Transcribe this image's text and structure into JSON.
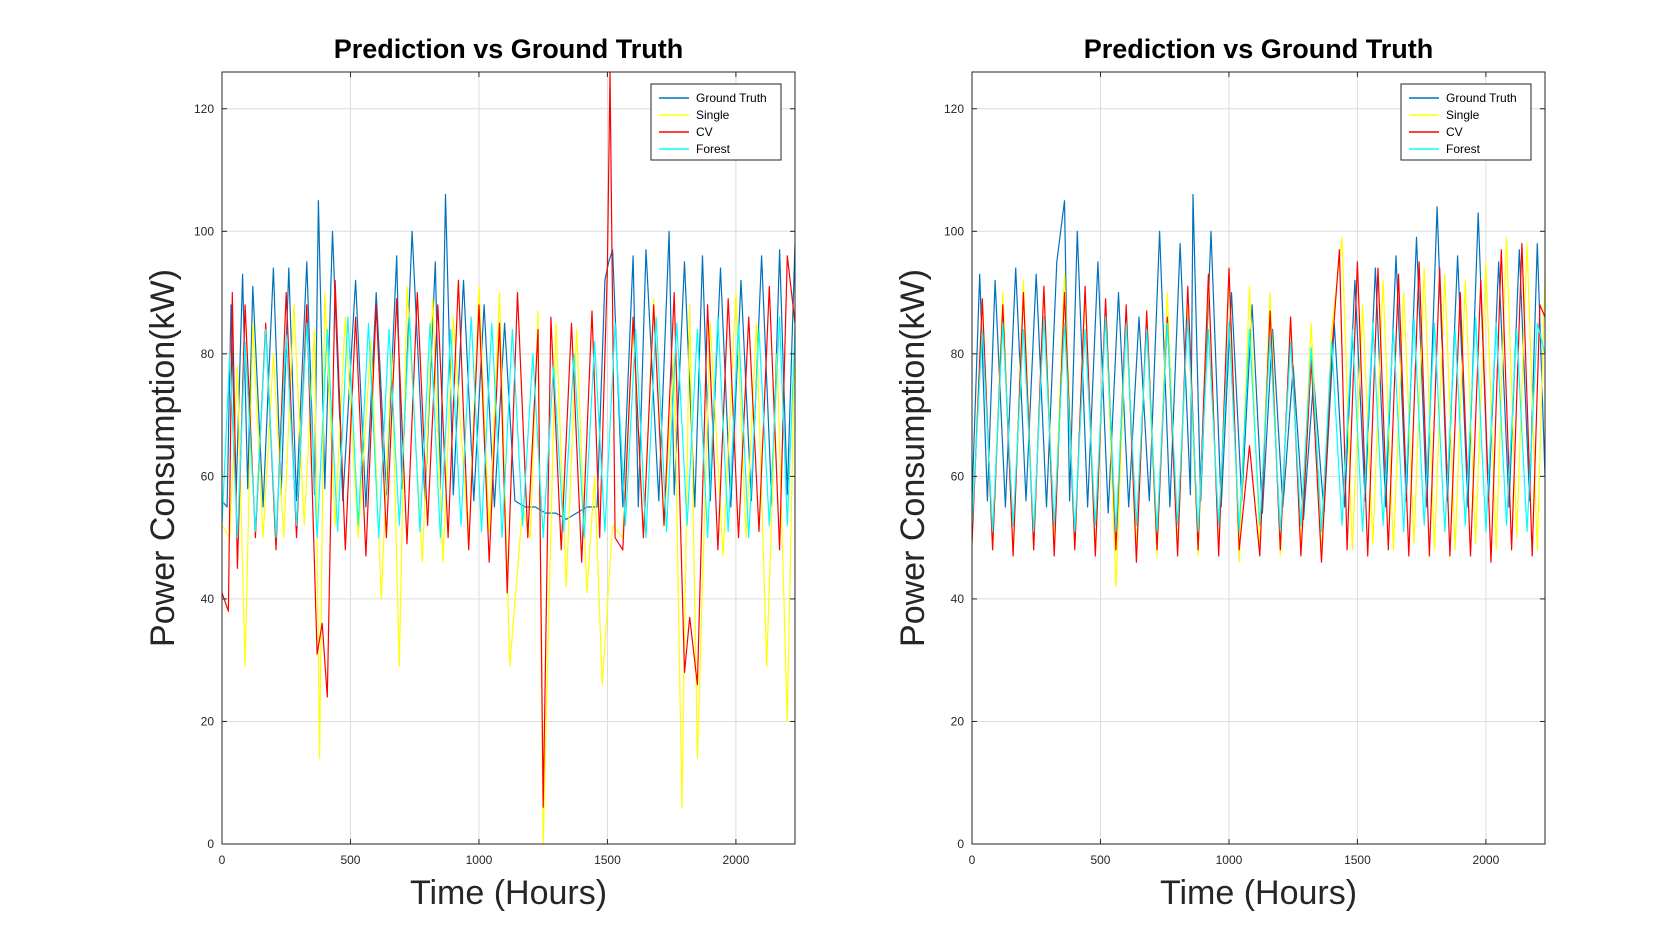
{
  "chart_data": [
    {
      "type": "line",
      "title": "Prediction vs Ground Truth",
      "xlabel": "Time (Hours)",
      "ylabel": "Power Consumption(kW)",
      "xlim": [
        0,
        2230
      ],
      "ylim": [
        0,
        126
      ],
      "xticks": [
        0,
        500,
        1000,
        1500,
        2000
      ],
      "yticks": [
        0,
        20,
        40,
        60,
        80,
        100,
        120
      ],
      "grid": true,
      "legend_position": "top-right",
      "series": [
        {
          "name": "Ground Truth",
          "color": "#0072BD",
          "x": [
            0,
            20,
            35,
            55,
            80,
            100,
            120,
            160,
            200,
            230,
            260,
            290,
            330,
            360,
            375,
            400,
            430,
            470,
            520,
            560,
            600,
            640,
            680,
            700,
            740,
            790,
            830,
            850,
            870,
            900,
            940,
            980,
            1020,
            1060,
            1100,
            1140,
            1180,
            1220,
            1260,
            1300,
            1340,
            1380,
            1420,
            1460,
            1490,
            1505,
            1520,
            1560,
            1600,
            1620,
            1650,
            1700,
            1740,
            1760,
            1800,
            1840,
            1870,
            1900,
            1940,
            1980,
            2020,
            2060,
            2100,
            2140,
            2170,
            2200,
            2230
          ],
          "values": [
            56,
            55,
            88,
            57,
            93,
            58,
            91,
            55,
            94,
            57,
            94,
            56,
            95,
            57,
            105,
            58,
            100,
            56,
            92,
            55,
            90,
            57,
            96,
            58,
            100,
            56,
            95,
            58,
            106,
            57,
            92,
            56,
            88,
            55,
            85,
            56,
            55,
            55,
            54,
            54,
            53,
            54,
            55,
            55,
            92,
            95,
            97,
            55,
            96,
            55,
            97,
            56,
            100,
            57,
            95,
            55,
            96,
            56,
            94,
            55,
            92,
            56,
            96,
            55,
            97,
            57,
            98
          ]
        },
        {
          "name": "Single",
          "color": "#FFFF00",
          "x": [
            0,
            30,
            60,
            90,
            120,
            160,
            200,
            240,
            280,
            320,
            360,
            380,
            400,
            440,
            480,
            530,
            580,
            620,
            660,
            690,
            720,
            780,
            820,
            860,
            900,
            960,
            1000,
            1040,
            1080,
            1120,
            1170,
            1200,
            1230,
            1250,
            1300,
            1340,
            1380,
            1420,
            1450,
            1480,
            1520,
            1560,
            1600,
            1640,
            1680,
            1720,
            1760,
            1790,
            1820,
            1850,
            1900,
            1950,
            2000,
            2040,
            2080,
            2120,
            2160,
            2200,
            2230
          ],
          "values": [
            52,
            50,
            78,
            29,
            85,
            50,
            80,
            50,
            88,
            52,
            84,
            14,
            90,
            52,
            86,
            50,
            82,
            40,
            80,
            29,
            91,
            46,
            89,
            46,
            86,
            49,
            91,
            51,
            90,
            29,
            55,
            50,
            87,
            0,
            85,
            42,
            84,
            41,
            60,
            26,
            52,
            50,
            85,
            50,
            89,
            52,
            80,
            6,
            88,
            14,
            85,
            47,
            90,
            50,
            85,
            29,
            80,
            20,
            85
          ]
        },
        {
          "name": "CV",
          "color": "#FF0000",
          "x": [
            0,
            25,
            40,
            60,
            90,
            130,
            170,
            210,
            250,
            290,
            330,
            370,
            390,
            410,
            440,
            480,
            520,
            560,
            600,
            640,
            680,
            720,
            760,
            800,
            840,
            880,
            920,
            960,
            1000,
            1040,
            1080,
            1110,
            1150,
            1190,
            1230,
            1250,
            1280,
            1320,
            1360,
            1400,
            1440,
            1470,
            1500,
            1510,
            1530,
            1560,
            1600,
            1640,
            1680,
            1720,
            1760,
            1800,
            1820,
            1850,
            1890,
            1930,
            1970,
            2010,
            2050,
            2090,
            2130,
            2170,
            2200,
            2230
          ],
          "values": [
            41,
            38,
            90,
            45,
            88,
            50,
            85,
            48,
            90,
            50,
            88,
            31,
            36,
            24,
            92,
            48,
            86,
            47,
            88,
            50,
            89,
            49,
            90,
            52,
            88,
            50,
            92,
            48,
            88,
            46,
            85,
            41,
            90,
            50,
            84,
            6,
            86,
            48,
            85,
            46,
            87,
            50,
            94,
            126,
            50,
            48,
            86,
            50,
            88,
            52,
            90,
            28,
            37,
            26,
            88,
            48,
            89,
            50,
            86,
            51,
            91,
            48,
            96,
            85
          ]
        },
        {
          "name": "Forest",
          "color": "#00FFFF",
          "x": [
            0,
            30,
            60,
            90,
            130,
            170,
            210,
            250,
            290,
            330,
            370,
            410,
            450,
            490,
            530,
            570,
            610,
            650,
            690,
            730,
            770,
            810,
            850,
            890,
            930,
            970,
            1010,
            1050,
            1090,
            1130,
            1170,
            1210,
            1250,
            1290,
            1330,
            1370,
            1410,
            1450,
            1490,
            1530,
            1570,
            1610,
            1650,
            1690,
            1730,
            1770,
            1810,
            1850,
            1890,
            1930,
            1970,
            2010,
            2050,
            2090,
            2130,
            2170,
            2200,
            2230
          ],
          "values": [
            52,
            80,
            50,
            82,
            51,
            84,
            50,
            83,
            52,
            85,
            50,
            84,
            51,
            86,
            52,
            85,
            50,
            84,
            52,
            86,
            51,
            85,
            50,
            84,
            52,
            86,
            51,
            85,
            50,
            84,
            52,
            80,
            50,
            78,
            51,
            80,
            50,
            82,
            51,
            85,
            52,
            84,
            50,
            86,
            51,
            85,
            52,
            84,
            50,
            86,
            51,
            85,
            50,
            84,
            52,
            86,
            52,
            84
          ]
        }
      ]
    },
    {
      "type": "line",
      "title": "Prediction vs Ground Truth",
      "xlabel": "Time (Hours)",
      "ylabel": "Power Consumption(kW)",
      "xlim": [
        0,
        2230
      ],
      "ylim": [
        0,
        126
      ],
      "xticks": [
        0,
        500,
        1000,
        1500,
        2000
      ],
      "yticks": [
        0,
        20,
        40,
        60,
        80,
        100,
        120
      ],
      "grid": true,
      "legend_position": "top-right",
      "series": [
        {
          "name": "Ground Truth",
          "color": "#0072BD",
          "x": [
            0,
            30,
            60,
            90,
            130,
            170,
            210,
            250,
            290,
            330,
            360,
            380,
            410,
            450,
            490,
            530,
            570,
            610,
            650,
            690,
            730,
            770,
            810,
            850,
            860,
            890,
            930,
            970,
            1010,
            1050,
            1090,
            1130,
            1170,
            1210,
            1250,
            1290,
            1330,
            1370,
            1410,
            1450,
            1490,
            1530,
            1570,
            1610,
            1650,
            1690,
            1730,
            1770,
            1810,
            1850,
            1890,
            1930,
            1970,
            2010,
            2050,
            2090,
            2130,
            2170,
            2200,
            2230
          ],
          "values": [
            56,
            93,
            56,
            92,
            55,
            94,
            56,
            93,
            55,
            95,
            105,
            56,
            100,
            55,
            95,
            54,
            90,
            55,
            86,
            56,
            100,
            55,
            98,
            57,
            106,
            56,
            100,
            55,
            90,
            56,
            88,
            54,
            84,
            55,
            78,
            53,
            76,
            54,
            85,
            55,
            92,
            56,
            94,
            55,
            96,
            56,
            99,
            55,
            104,
            56,
            96,
            55,
            103,
            56,
            95,
            55,
            97,
            56,
            98,
            60
          ]
        },
        {
          "name": "Single",
          "color": "#FFFF00",
          "x": [
            0,
            40,
            80,
            120,
            160,
            200,
            240,
            280,
            320,
            360,
            400,
            440,
            480,
            520,
            560,
            600,
            640,
            680,
            720,
            760,
            800,
            840,
            880,
            920,
            960,
            1000,
            1040,
            1080,
            1120,
            1160,
            1200,
            1240,
            1280,
            1320,
            1360,
            1400,
            1440,
            1480,
            1520,
            1560,
            1600,
            1640,
            1680,
            1720,
            1760,
            1800,
            1840,
            1880,
            1920,
            1960,
            2000,
            2040,
            2080,
            2120,
            2160,
            2200,
            2230
          ],
          "values": [
            50,
            89,
            48,
            90,
            47,
            92,
            48,
            91,
            50,
            93,
            48,
            90,
            47,
            88,
            42,
            86,
            48,
            85,
            47,
            90,
            48,
            88,
            47,
            92,
            48,
            93,
            46,
            91,
            48,
            90,
            47,
            86,
            48,
            85,
            47,
            84,
            99,
            48,
            88,
            49,
            92,
            48,
            90,
            49,
            94,
            48,
            93,
            48,
            92,
            49,
            95,
            48,
            99,
            50,
            98,
            48,
            93
          ]
        },
        {
          "name": "CV",
          "color": "#FF0000",
          "x": [
            0,
            40,
            80,
            120,
            160,
            200,
            240,
            280,
            320,
            360,
            400,
            440,
            480,
            520,
            560,
            600,
            640,
            680,
            720,
            760,
            800,
            840,
            880,
            920,
            960,
            1000,
            1040,
            1080,
            1120,
            1160,
            1200,
            1240,
            1280,
            1320,
            1360,
            1400,
            1430,
            1460,
            1500,
            1540,
            1580,
            1620,
            1660,
            1700,
            1740,
            1780,
            1820,
            1860,
            1900,
            1940,
            1980,
            2020,
            2060,
            2100,
            2140,
            2180,
            2210,
            2230
          ],
          "values": [
            49,
            89,
            48,
            88,
            47,
            90,
            48,
            91,
            47,
            90,
            48,
            91,
            47,
            89,
            48,
            88,
            46,
            87,
            48,
            86,
            47,
            91,
            48,
            93,
            47,
            94,
            48,
            65,
            47,
            87,
            48,
            86,
            47,
            79,
            46,
            80,
            97,
            48,
            95,
            47,
            94,
            48,
            93,
            47,
            95,
            47,
            94,
            47,
            90,
            47,
            92,
            46,
            97,
            48,
            98,
            47,
            88,
            86
          ]
        },
        {
          "name": "Forest",
          "color": "#00FFFF",
          "x": [
            0,
            40,
            80,
            120,
            160,
            200,
            240,
            280,
            320,
            360,
            400,
            440,
            480,
            520,
            560,
            600,
            640,
            680,
            720,
            760,
            800,
            840,
            880,
            920,
            960,
            1000,
            1040,
            1080,
            1120,
            1160,
            1200,
            1240,
            1280,
            1320,
            1360,
            1400,
            1440,
            1480,
            1520,
            1560,
            1600,
            1640,
            1680,
            1720,
            1760,
            1800,
            1840,
            1880,
            1920,
            1960,
            2000,
            2040,
            2080,
            2120,
            2160,
            2200,
            2230
          ],
          "values": [
            52,
            84,
            51,
            85,
            52,
            84,
            51,
            86,
            52,
            85,
            51,
            84,
            52,
            86,
            51,
            85,
            52,
            84,
            51,
            85,
            52,
            86,
            51,
            84,
            52,
            85,
            51,
            84,
            52,
            83,
            51,
            82,
            52,
            81,
            51,
            82,
            52,
            84,
            51,
            85,
            52,
            84,
            51,
            86,
            52,
            85,
            51,
            84,
            52,
            86,
            51,
            85,
            52,
            84,
            51,
            85,
            80
          ]
        }
      ]
    }
  ]
}
